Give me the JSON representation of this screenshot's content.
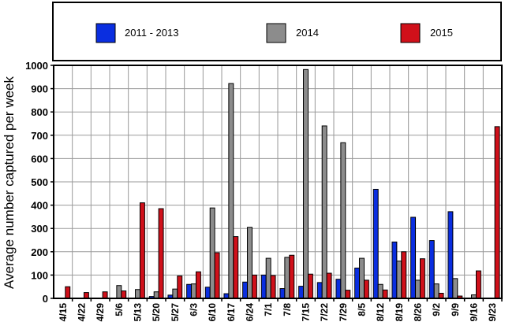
{
  "chart_data": {
    "type": "bar",
    "title": "",
    "xlabel": "",
    "ylabel": "Average number captured per week",
    "ylim": [
      0,
      1000
    ],
    "yticks": [
      0,
      100,
      200,
      300,
      400,
      500,
      600,
      700,
      800,
      900,
      1000
    ],
    "grid": true,
    "legend_position": "top",
    "categories": [
      "4/15",
      "4/22",
      "4/29",
      "5/6",
      "5/13",
      "5/20",
      "5/27",
      "6/3",
      "6/10",
      "6/17",
      "6/24",
      "7/1",
      "7/8",
      "7/15",
      "7/22",
      "7/29",
      "8/5",
      "8/12",
      "8/19",
      "8/26",
      "9/2",
      "9/9",
      "9/16",
      "9/23"
    ],
    "series": [
      {
        "name": "2011 - 2013",
        "color": "#0a2ee0",
        "values": [
          0,
          0,
          0,
          0,
          0,
          8,
          14,
          60,
          48,
          20,
          70,
          100,
          42,
          52,
          68,
          82,
          130,
          468,
          242,
          348,
          248,
          372,
          0,
          0
        ]
      },
      {
        "name": "2014",
        "color": "#8c8c8c",
        "values": [
          0,
          0,
          0,
          55,
          38,
          28,
          40,
          62,
          388,
          922,
          305,
          172,
          176,
          982,
          740,
          668,
          172,
          60,
          160,
          78,
          62,
          85,
          15,
          0
        ]
      },
      {
        "name": "2015",
        "color": "#d0101a",
        "values": [
          50,
          25,
          28,
          32,
          410,
          385,
          96,
          114,
          196,
          265,
          100,
          98,
          185,
          104,
          108,
          35,
          78,
          36,
          200,
          170,
          22,
          10,
          118,
          737
        ]
      }
    ]
  }
}
